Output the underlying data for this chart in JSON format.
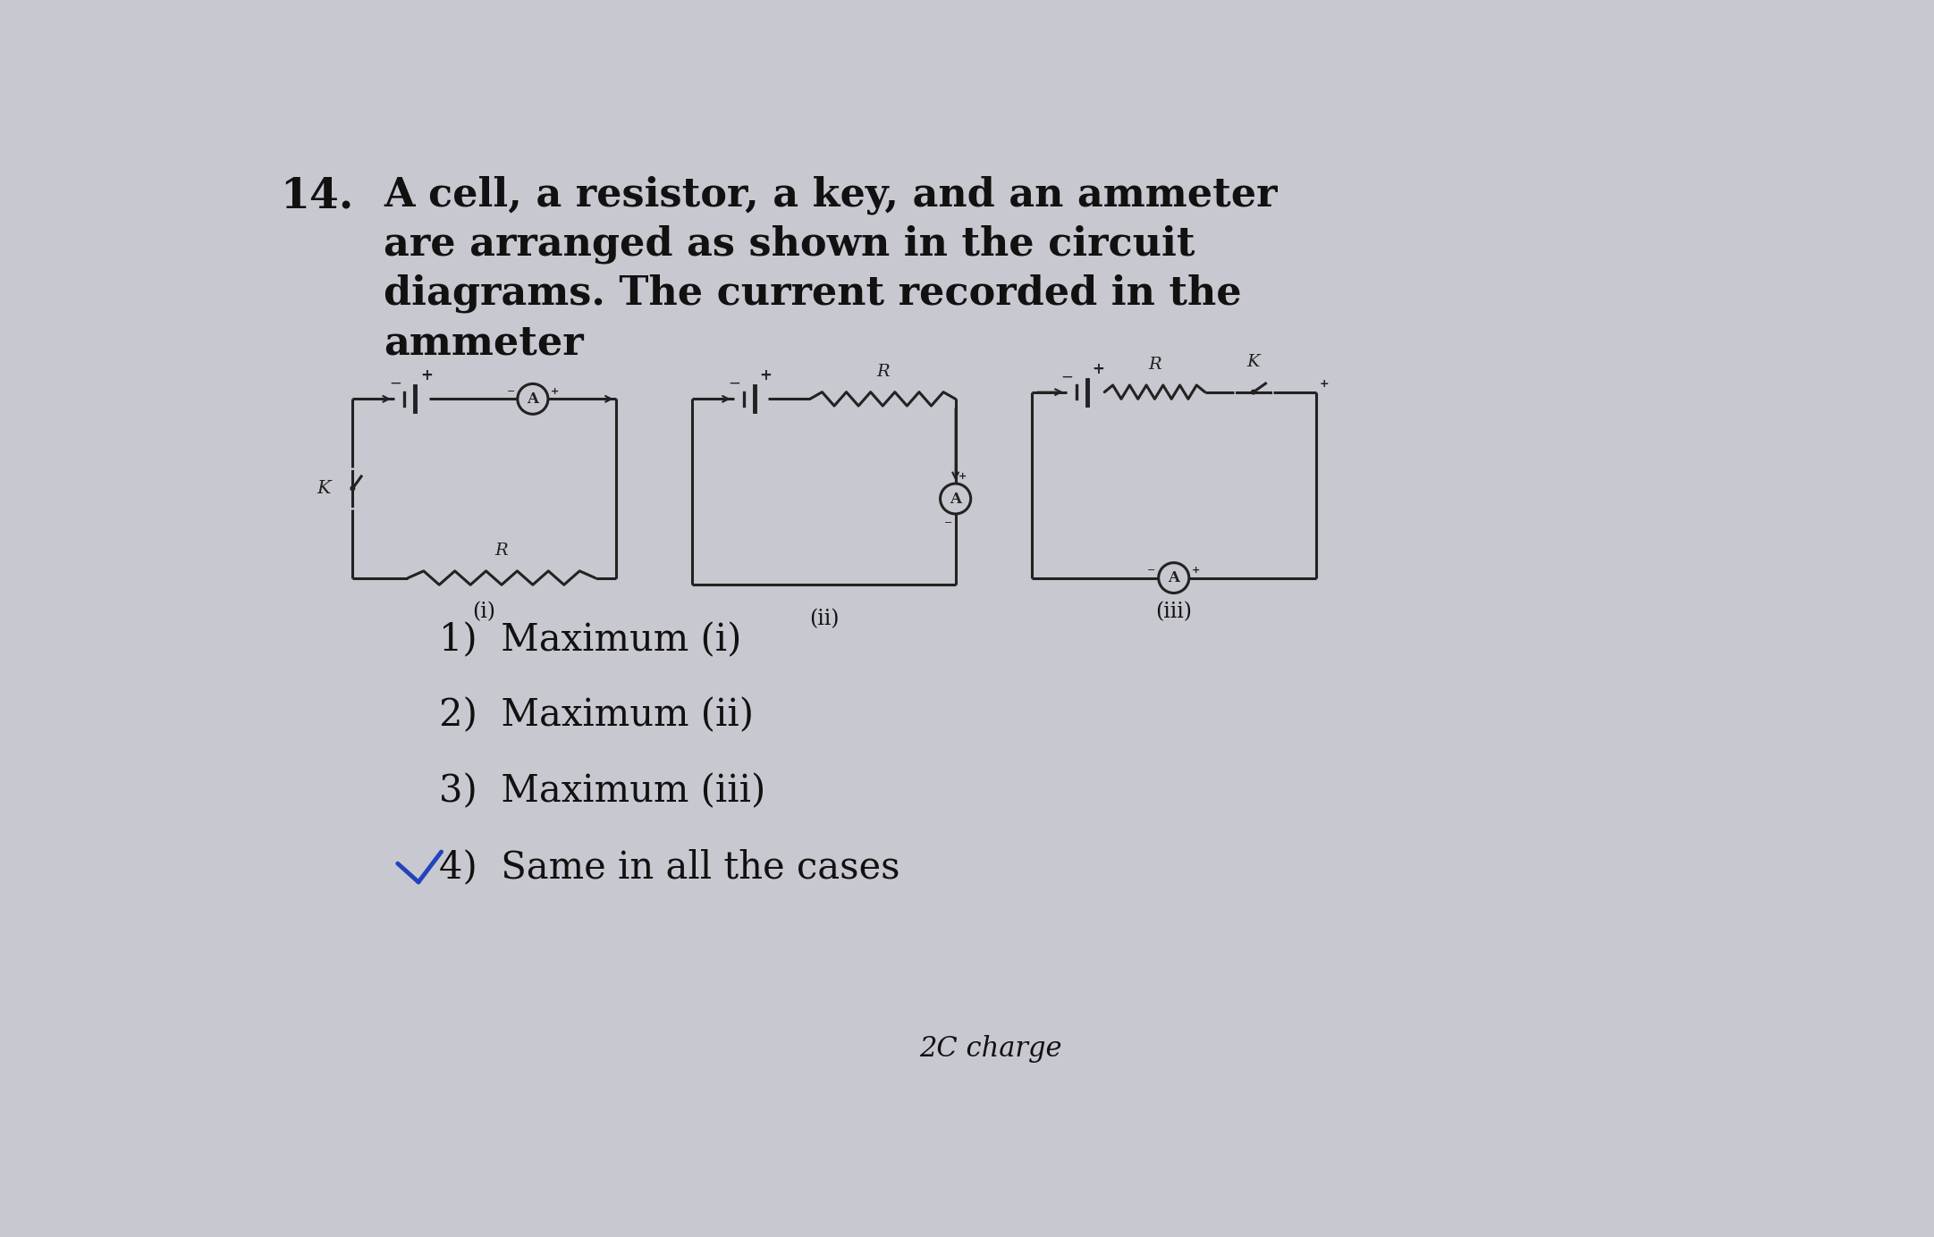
{
  "bg_color": "#c8c8d0",
  "text_color": "#111111",
  "line_color": "#222222",
  "title_number": "14.",
  "question_line1": "A cell, a resistor, a key, and an ammeter",
  "question_line2": "are arranged as shown in the circuit",
  "question_line3": "diagrams. The current recorded in the",
  "question_line4": "ammeter",
  "options": [
    "1)  Maximum (i)",
    "2)  Maximum (ii)",
    "3)  Maximum (iii)",
    "4)  Same in all the cases"
  ],
  "diagram_labels": [
    "(i)",
    "(ii)",
    "(iii)"
  ],
  "bottom_text": "2C charge",
  "lw": 2.2,
  "ammeter_r": 0.22,
  "font_q": 32,
  "font_num": 34,
  "font_opt": 30,
  "font_diag": 17,
  "font_comp": 11
}
